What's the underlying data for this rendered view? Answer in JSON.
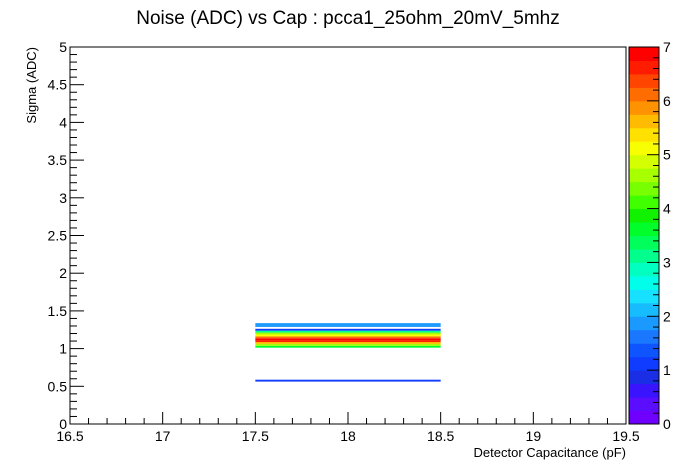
{
  "chart_data": {
    "type": "heatmap",
    "title": "Noise (ADC) vs Cap : pcca1_25ohm_20mV_5mhz",
    "xlabel": "Detector Capacitance (pF)",
    "ylabel": "Sigma (ADC)",
    "xlim": [
      16.5,
      19.5
    ],
    "ylim": [
      0,
      5
    ],
    "x_ticks": [
      "16.5",
      "17",
      "17.5",
      "18",
      "18.5",
      "19",
      "19.5"
    ],
    "y_ticks": [
      "0",
      "0.5",
      "1",
      "1.5",
      "2",
      "2.5",
      "3",
      "3.5",
      "4",
      "4.5",
      "5"
    ],
    "z_range": [
      0,
      7
    ],
    "z_ticks": [
      "0",
      "1",
      "2",
      "3",
      "4",
      "5",
      "6",
      "7"
    ],
    "bin_width_y": 0.025,
    "cells": [
      {
        "x0": 17.5,
        "x1": 18.5,
        "y": 0.575,
        "z": 1.0
      },
      {
        "x0": 17.5,
        "x1": 18.5,
        "y": 1.025,
        "z": 3.5
      },
      {
        "x0": 17.5,
        "x1": 18.5,
        "y": 1.05,
        "z": 4.6
      },
      {
        "x0": 17.5,
        "x1": 18.5,
        "y": 1.075,
        "z": 5.7
      },
      {
        "x0": 17.5,
        "x1": 18.5,
        "y": 1.1,
        "z": 6.6
      },
      {
        "x0": 17.5,
        "x1": 18.5,
        "y": 1.125,
        "z": 7.0
      },
      {
        "x0": 17.5,
        "x1": 18.5,
        "y": 1.15,
        "z": 6.1
      },
      {
        "x0": 17.5,
        "x1": 18.5,
        "y": 1.175,
        "z": 5.2
      },
      {
        "x0": 17.5,
        "x1": 18.5,
        "y": 1.2,
        "z": 4.6
      },
      {
        "x0": 17.5,
        "x1": 18.5,
        "y": 1.225,
        "z": 3.2
      },
      {
        "x0": 17.5,
        "x1": 18.5,
        "y": 1.25,
        "z": 1.0
      },
      {
        "x0": 17.5,
        "x1": 18.5,
        "y": 1.3,
        "z": 1.9
      },
      {
        "x0": 17.5,
        "x1": 18.5,
        "y": 1.325,
        "z": 1.9
      }
    ],
    "palette": [
      "#6f00ff",
      "#5a0dff",
      "#3a14ff",
      "#1a2ee6",
      "#0f3cff",
      "#0f55ff",
      "#1a78ff",
      "#1a99ff",
      "#17bcff",
      "#18e0ff",
      "#00ffea",
      "#00ffc0",
      "#00ff8c",
      "#00ff5a",
      "#00ff2a",
      "#10f200",
      "#40ff00",
      "#78ff00",
      "#a8ff00",
      "#d4ff00",
      "#f8ff00",
      "#ffe100",
      "#ffbb00",
      "#ff9200",
      "#ff6c00",
      "#ff4500",
      "#ff1c00",
      "#ff0000"
    ],
    "grid": false,
    "legend": "color bar at right"
  }
}
